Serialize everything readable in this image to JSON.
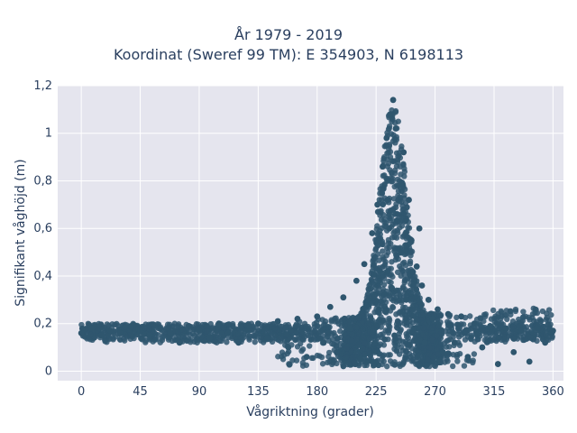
{
  "chart_data": {
    "type": "scatter",
    "title_lines": [
      "År 1979 - 2019",
      "Koordinat (Sweref 99 TM): E 354903, N 6198113"
    ],
    "xlabel": "Vågriktning (grader)",
    "ylabel": "Signifikant våghöjd (m)",
    "xlim": [
      -18,
      368
    ],
    "ylim": [
      -0.04,
      1.2
    ],
    "x_ticks": [
      0,
      45,
      90,
      135,
      180,
      225,
      270,
      315,
      360
    ],
    "x_tick_labels": [
      "0",
      "45",
      "90",
      "135",
      "180",
      "225",
      "270",
      "315",
      "360"
    ],
    "y_ticks": [
      0,
      0.2,
      0.4,
      0.6,
      0.8,
      1.0,
      1.2
    ],
    "y_tick_labels": [
      "0",
      "0,2",
      "0,4",
      "0,6",
      "0,8",
      "1",
      "1,2"
    ],
    "grid": true,
    "legend": "none",
    "plot_background": "#e5e5ee",
    "marker_color": "#2f566e",
    "series": [
      {
        "values": [
          [
            0,
            0.16
          ],
          [
            8,
            0.18
          ],
          [
            15,
            0.15
          ],
          [
            22,
            0.17
          ],
          [
            30,
            0.16
          ],
          [
            38,
            0.19
          ],
          [
            45,
            0.17
          ],
          [
            52,
            0.15
          ],
          [
            60,
            0.18
          ],
          [
            68,
            0.16
          ],
          [
            75,
            0.12
          ],
          [
            82,
            0.19
          ],
          [
            90,
            0.17
          ],
          [
            98,
            0.14
          ],
          [
            105,
            0.2
          ],
          [
            112,
            0.16
          ],
          [
            120,
            0.12
          ],
          [
            128,
            0.19
          ],
          [
            135,
            0.2
          ],
          [
            142,
            0.14
          ],
          [
            150,
            0.21
          ],
          [
            158,
            0.1
          ],
          [
            165,
            0.22
          ],
          [
            172,
            0.06
          ],
          [
            180,
            0.23
          ],
          [
            185,
            0.12
          ],
          [
            190,
            0.27
          ],
          [
            195,
            0.08
          ],
          [
            200,
            0.31
          ],
          [
            205,
            0.18
          ],
          [
            210,
            0.38
          ],
          [
            213,
            0.05
          ],
          [
            216,
            0.45
          ],
          [
            219,
            0.3
          ],
          [
            222,
            0.58
          ],
          [
            224,
            0.12
          ],
          [
            226,
            0.7
          ],
          [
            228,
            0.42
          ],
          [
            230,
            0.86
          ],
          [
            232,
            0.25
          ],
          [
            233,
            0.98
          ],
          [
            235,
            0.6
          ],
          [
            236,
            1.08
          ],
          [
            237,
            0.35
          ],
          [
            238,
            1.14
          ],
          [
            239,
            0.15
          ],
          [
            240,
            1.02
          ],
          [
            242,
            0.78
          ],
          [
            244,
            0.5
          ],
          [
            246,
            0.92
          ],
          [
            248,
            0.3
          ],
          [
            250,
            0.72
          ],
          [
            252,
            0.55
          ],
          [
            254,
            0.18
          ],
          [
            256,
            0.44
          ],
          [
            258,
            0.6
          ],
          [
            260,
            0.36
          ],
          [
            262,
            0.12
          ],
          [
            265,
            0.3
          ],
          [
            268,
            0.22
          ],
          [
            272,
            0.26
          ],
          [
            276,
            0.08
          ],
          [
            280,
            0.24
          ],
          [
            285,
            0.12
          ],
          [
            290,
            0.23
          ],
          [
            295,
            0.06
          ],
          [
            300,
            0.2
          ],
          [
            306,
            0.1
          ],
          [
            312,
            0.19
          ],
          [
            318,
            0.03
          ],
          [
            324,
            0.18
          ],
          [
            330,
            0.08
          ],
          [
            336,
            0.17
          ],
          [
            342,
            0.04
          ],
          [
            348,
            0.18
          ],
          [
            354,
            0.12
          ],
          [
            360,
            0.17
          ]
        ]
      }
    ]
  }
}
